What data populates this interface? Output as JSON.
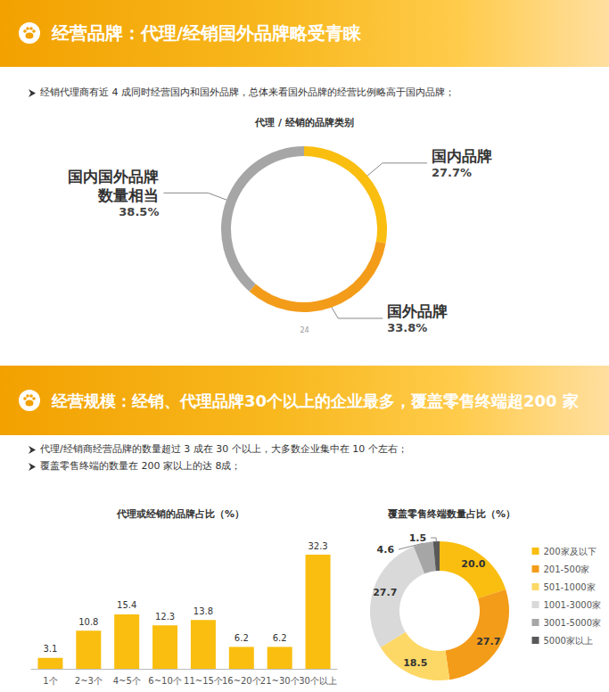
{
  "slides": [
    {
      "title": "经营品牌：代理/经销国外品牌略受青睐",
      "bullets": [
        "经销代理商有近 4 成同时经营国内和国外品牌，总体来看国外品牌的经营比例略高于国内品牌；"
      ],
      "page_number": 24
    },
    {
      "title": "经营规模：经销、代理品牌30个以上的企业最多，覆盖零售终端超200 家",
      "bullets": [
        "代理/经销商经营品牌的数量超过 3 成在 30 个以上，大多数企业集中在 10 个左右；",
        "覆盖零售终端的数量在 200 家以上的达 8成；"
      ]
    }
  ],
  "chart_data": [
    {
      "type": "pie",
      "title": "代理 / 经销的品牌类别",
      "categories": [
        "国内品牌",
        "国外品牌",
        "国内国外品牌\n数量相当"
      ],
      "values": [
        27.7,
        33.8,
        38.5
      ],
      "value_labels": [
        "27.7%",
        "33.8%",
        "38.5%"
      ],
      "colors": [
        "#F9BE0F",
        "#F39C1A",
        "#A6A6A6"
      ],
      "data_labels": true
    },
    {
      "type": "bar",
      "title": "代理或经销的品牌占比（%）",
      "categories": [
        "1个",
        "2~3个",
        "4~5个",
        "6~10个",
        "11~15个",
        "16~20个",
        "21~30个",
        "30个以上"
      ],
      "values": [
        3.1,
        10.8,
        15.4,
        12.3,
        13.8,
        6.2,
        6.2,
        32.3
      ],
      "color": "#F9BE0F",
      "data_labels": true,
      "tick_labels": "x",
      "grid": false
    },
    {
      "type": "pie",
      "title": "覆盖零售终端数量占比（%）",
      "categories": [
        "200家及以下",
        "201-500家",
        "501-1000家",
        "1001-3000家",
        "3001-5000家",
        "5000家以上"
      ],
      "values": [
        20,
        27.7,
        18.5,
        27.7,
        4.6,
        1.5
      ],
      "value_labels": [
        "20.0",
        "27.7",
        "18.5",
        "27.7",
        "4.6",
        "1.5"
      ],
      "colors": [
        "#F9BE0F",
        "#F39C1A",
        "#FDD866",
        "#D9D9D9",
        "#A6A6A6",
        "#595959"
      ],
      "data_labels": true,
      "legend": "right"
    }
  ]
}
